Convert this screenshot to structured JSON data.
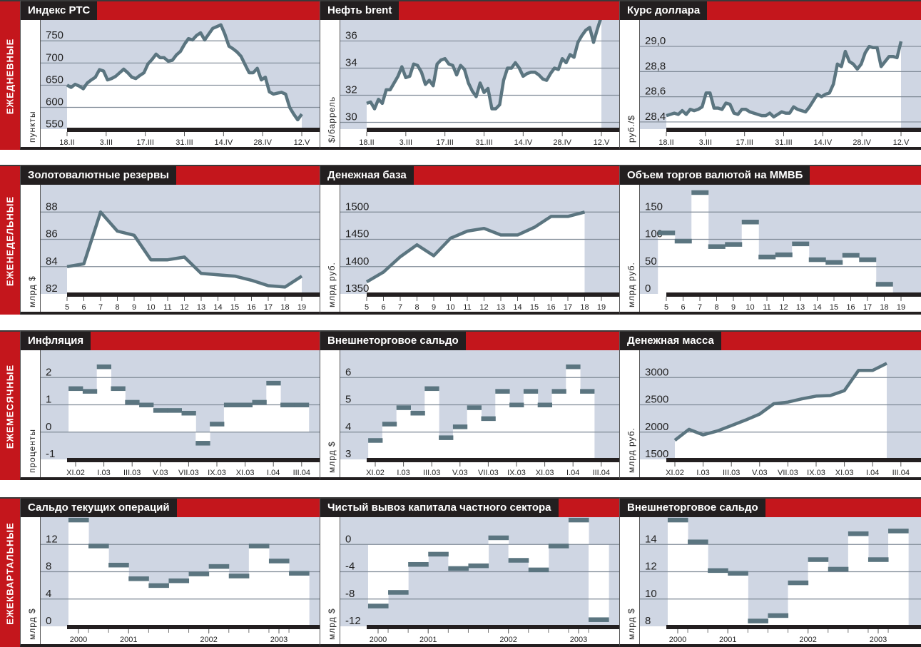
{
  "rows": [
    {
      "label": "ЕЖЕДНЕВНЫЕ"
    },
    {
      "label": "ЕЖЕНЕДЕЛЬНЫЕ"
    },
    {
      "label": "ЕЖЕМЕСЯЧНЫЕ"
    },
    {
      "label": "ЕЖЕКВАРТАЛЬНЫЕ"
    }
  ],
  "colors": {
    "red": "#c4161c",
    "black": "#231f20",
    "plot_bg": "#cfd6e3",
    "line": "#5b7580",
    "grid": "#7f8a96"
  },
  "chart_data": [
    {
      "type": "line",
      "period": "daily",
      "title": "Индекс РТС",
      "ylabel": "пункты",
      "ylim": [
        551,
        797
      ],
      "yticks": [
        550,
        600,
        650,
        700,
        750
      ],
      "ytick_labels": [
        "550",
        "600",
        "650",
        "700",
        "750"
      ],
      "xtick_labels": [
        "18.II",
        "3.III",
        "17.III",
        "31.III",
        "14.IV",
        "28.IV",
        "12.V"
      ],
      "values": [
        650,
        645,
        652,
        648,
        642,
        655,
        662,
        668,
        685,
        682,
        662,
        665,
        670,
        678,
        686,
        678,
        668,
        665,
        672,
        678,
        698,
        708,
        720,
        712,
        712,
        704,
        706,
        718,
        726,
        742,
        755,
        752,
        762,
        768,
        752,
        765,
        778,
        782,
        786,
        765,
        738,
        732,
        725,
        715,
        696,
        678,
        678,
        688,
        662,
        668,
        635,
        630,
        632,
        634,
        630,
        600,
        585,
        572,
        585
      ]
    },
    {
      "type": "line",
      "period": "daily",
      "title": "Нефть brent",
      "ylabel": "$/баррель",
      "ylim": [
        29.5,
        37.55
      ],
      "yticks": [
        30,
        32,
        34,
        36
      ],
      "ytick_labels": [
        "30",
        "32",
        "34",
        "36"
      ],
      "xtick_labels": [
        "18.II",
        "3.III",
        "17.III",
        "31.III",
        "14.IV",
        "28.IV",
        "12.V"
      ],
      "values": [
        31.4,
        31.5,
        31.0,
        31.7,
        31.4,
        32.4,
        32.4,
        32.9,
        33.4,
        34.1,
        33.3,
        33.4,
        34.3,
        34.2,
        33.7,
        32.8,
        33.1,
        32.7,
        34.3,
        34.6,
        34.7,
        34.3,
        34.2,
        33.5,
        34.2,
        33.9,
        32.9,
        32.3,
        31.9,
        32.9,
        32.2,
        32.5,
        31.0,
        31.0,
        31.3,
        33.1,
        34.0,
        34.0,
        34.4,
        34.0,
        33.4,
        33.6,
        33.7,
        33.7,
        33.5,
        33.2,
        33.1,
        33.6,
        34.0,
        33.9,
        34.7,
        34.4,
        35.0,
        34.8,
        35.9,
        36.4,
        36.8,
        37.0,
        35.9,
        36.9,
        37.8
      ]
    },
    {
      "type": "line",
      "period": "daily",
      "title": "Курс доллара",
      "ylabel": "руб./$",
      "ylim": [
        28.343,
        29.21
      ],
      "yticks": [
        28.4,
        28.6,
        28.8,
        29.0
      ],
      "ytick_labels": [
        "28,4",
        "28,6",
        "28,8",
        "29,0"
      ],
      "xtick_labels": [
        "18.II",
        "3.III",
        "17.III",
        "31.III",
        "14.IV",
        "28.IV",
        "12.V"
      ],
      "values": [
        28.45,
        28.46,
        28.47,
        28.46,
        28.49,
        28.46,
        28.5,
        28.49,
        28.5,
        28.52,
        28.63,
        28.63,
        28.51,
        28.51,
        28.5,
        28.55,
        28.54,
        28.47,
        28.46,
        28.5,
        28.5,
        28.48,
        28.47,
        28.46,
        28.45,
        28.45,
        28.47,
        28.44,
        28.46,
        28.48,
        28.47,
        28.47,
        28.52,
        28.5,
        28.49,
        28.48,
        28.52,
        28.57,
        28.62,
        28.6,
        28.62,
        28.63,
        28.7,
        28.86,
        28.84,
        28.96,
        28.88,
        28.86,
        28.82,
        28.86,
        28.95,
        29.0,
        28.99,
        28.99,
        28.84,
        28.88,
        28.92,
        28.92,
        28.91,
        29.04
      ]
    },
    {
      "type": "line",
      "period": "weekly",
      "title": "Золотовалютные резервы",
      "ylabel": "млрд $",
      "ylim": [
        82,
        90
      ],
      "yticks": [
        82,
        84,
        86,
        88
      ],
      "ytick_labels": [
        "82",
        "84",
        "86",
        "88"
      ],
      "xtick_labels": [
        "5",
        "6",
        "7",
        "8",
        "9",
        "10",
        "11",
        "12",
        "13",
        "14",
        "15",
        "16",
        "17",
        "18",
        "19"
      ],
      "values": [
        84.0,
        84.2,
        88.0,
        86.6,
        86.3,
        84.5,
        84.5,
        84.7,
        83.5,
        83.4,
        83.3,
        83.0,
        82.6,
        82.5,
        83.3
      ]
    },
    {
      "type": "line",
      "period": "weekly",
      "title": "Денежная база",
      "ylabel": "млрд руб.",
      "ylim": [
        1350,
        1550
      ],
      "yticks": [
        1350,
        1400,
        1450,
        1500
      ],
      "ytick_labels": [
        "1350",
        "1400",
        "1450",
        "1500"
      ],
      "xtick_labels": [
        "5",
        "6",
        "7",
        "8",
        "9",
        "10",
        "11",
        "12",
        "13",
        "14",
        "15",
        "16",
        "17",
        "18",
        "19"
      ],
      "values": [
        1372,
        1390,
        1418,
        1440,
        1420,
        1452,
        1465,
        1470,
        1458,
        1458,
        1472,
        1492,
        1492,
        1500
      ]
    },
    {
      "type": "step",
      "period": "weekly",
      "title": "Объем торгов валютой на ММВБ",
      "ylabel": "млрд руб.",
      "ylim": [
        0,
        200
      ],
      "baseline": 0,
      "yticks": [
        0,
        50,
        100,
        150
      ],
      "ytick_labels": [
        "0",
        "50",
        "100",
        "150"
      ],
      "xtick_labels": [
        "5",
        "6",
        "7",
        "8",
        "9",
        "10",
        "11",
        "12",
        "13",
        "14",
        "15",
        "16",
        "17",
        "18",
        "19"
      ],
      "values": [
        112,
        97,
        186,
        87,
        91,
        132,
        68,
        72,
        92,
        63,
        58,
        71,
        63,
        18
      ]
    },
    {
      "type": "step",
      "period": "monthly",
      "title": "Инфляция",
      "ylabel": "проценты",
      "ylim": [
        -1,
        3
      ],
      "baseline": 0,
      "yticks": [
        -1,
        0,
        1,
        2
      ],
      "ytick_labels": [
        "-1",
        "0",
        "1",
        "2"
      ],
      "xtick_labels": [
        "XI.02",
        "I.03",
        "III.03",
        "V.03",
        "VII.03",
        "IX.03",
        "XI.03",
        "I.04",
        "III.04"
      ],
      "values": [
        1.6,
        1.5,
        2.4,
        1.6,
        1.1,
        1.0,
        0.8,
        0.8,
        0.7,
        -0.4,
        0.3,
        1.0,
        1.0,
        1.1,
        1.8,
        1.0,
        1.0
      ]
    },
    {
      "type": "step",
      "period": "monthly",
      "title": "Внешнеторговое сальдо",
      "ylabel": "млрд $",
      "ylim": [
        3,
        7
      ],
      "baseline": 3,
      "yticks": [
        3,
        4,
        5,
        6
      ],
      "ytick_labels": [
        "3",
        "4",
        "5",
        "6"
      ],
      "xtick_labels": [
        "XI.02",
        "I.03",
        "III.03",
        "V.03",
        "VII.03",
        "IX.03",
        "XI.03",
        "I.04",
        "III.04"
      ],
      "values": [
        3.7,
        4.3,
        4.9,
        4.7,
        5.6,
        3.8,
        4.2,
        4.9,
        4.5,
        5.5,
        5.0,
        5.5,
        5.0,
        5.5,
        6.4,
        5.5
      ]
    },
    {
      "type": "line",
      "period": "monthly",
      "title": "Денежная масса",
      "ylabel": "млрд руб.",
      "ylim": [
        1500,
        3500
      ],
      "yticks": [
        1500,
        2000,
        2500,
        3000
      ],
      "ytick_labels": [
        "1500",
        "2000",
        "2500",
        "3000"
      ],
      "xtick_labels": [
        "XI.02",
        "I.03",
        "III.03",
        "V.03",
        "VII.03",
        "IX.03",
        "XI.03",
        "I.04",
        "III.04"
      ],
      "values": [
        1850,
        2050,
        1950,
        2020,
        2120,
        2220,
        2330,
        2520,
        2550,
        2610,
        2660,
        2670,
        2760,
        3130,
        3130,
        3260
      ]
    },
    {
      "type": "step",
      "period": "quarterly",
      "title": "Сальдо текущих операций",
      "ylabel": "млрд $",
      "ylim": [
        0,
        16
      ],
      "baseline": 0,
      "yticks": [
        0,
        4,
        8,
        12
      ],
      "ytick_labels": [
        "0",
        "4",
        "8",
        "12"
      ],
      "xtick_labels": [
        "2000",
        "2001",
        "2002",
        "2003"
      ],
      "xtick_at": [
        0,
        2.5,
        6.5,
        10
      ],
      "values": [
        15.6,
        11.8,
        9.0,
        7.0,
        6.0,
        6.7,
        7.7,
        8.8,
        7.4,
        11.8,
        9.6,
        7.8
      ]
    },
    {
      "type": "step",
      "period": "quarterly",
      "title": "Чистый вывоз капитала частного сектора",
      "ylabel": "млрд $",
      "ylim": [
        -12,
        4
      ],
      "baseline": 0,
      "yticks": [
        -12,
        -8,
        -4,
        0
      ],
      "ytick_labels": [
        "-12",
        "-8",
        "-4",
        "0"
      ],
      "xtick_labels": [
        "2000",
        "2001",
        "2002",
        "2003"
      ],
      "xtick_at": [
        0,
        2.5,
        6.5,
        10
      ],
      "values": [
        -9.0,
        -7.0,
        -2.9,
        -1.4,
        -3.5,
        -3.1,
        1.0,
        -2.3,
        -3.7,
        -0.2,
        3.6,
        -11.0
      ]
    },
    {
      "type": "step",
      "period": "quarterly",
      "title": "Внешнеторговое сальдо",
      "ylabel": "млрд $",
      "ylim": [
        8,
        16
      ],
      "baseline": 8,
      "yticks": [
        8,
        10,
        12,
        14
      ],
      "ytick_labels": [
        "8",
        "10",
        "12",
        "14"
      ],
      "xtick_labels": [
        "2000",
        "2001",
        "2002",
        "2003"
      ],
      "xtick_at": [
        0,
        2.5,
        6.5,
        10
      ],
      "values": [
        15.8,
        14.2,
        12.1,
        11.9,
        8.4,
        8.8,
        11.2,
        12.9,
        12.2,
        14.8,
        12.9,
        15.0
      ]
    }
  ]
}
